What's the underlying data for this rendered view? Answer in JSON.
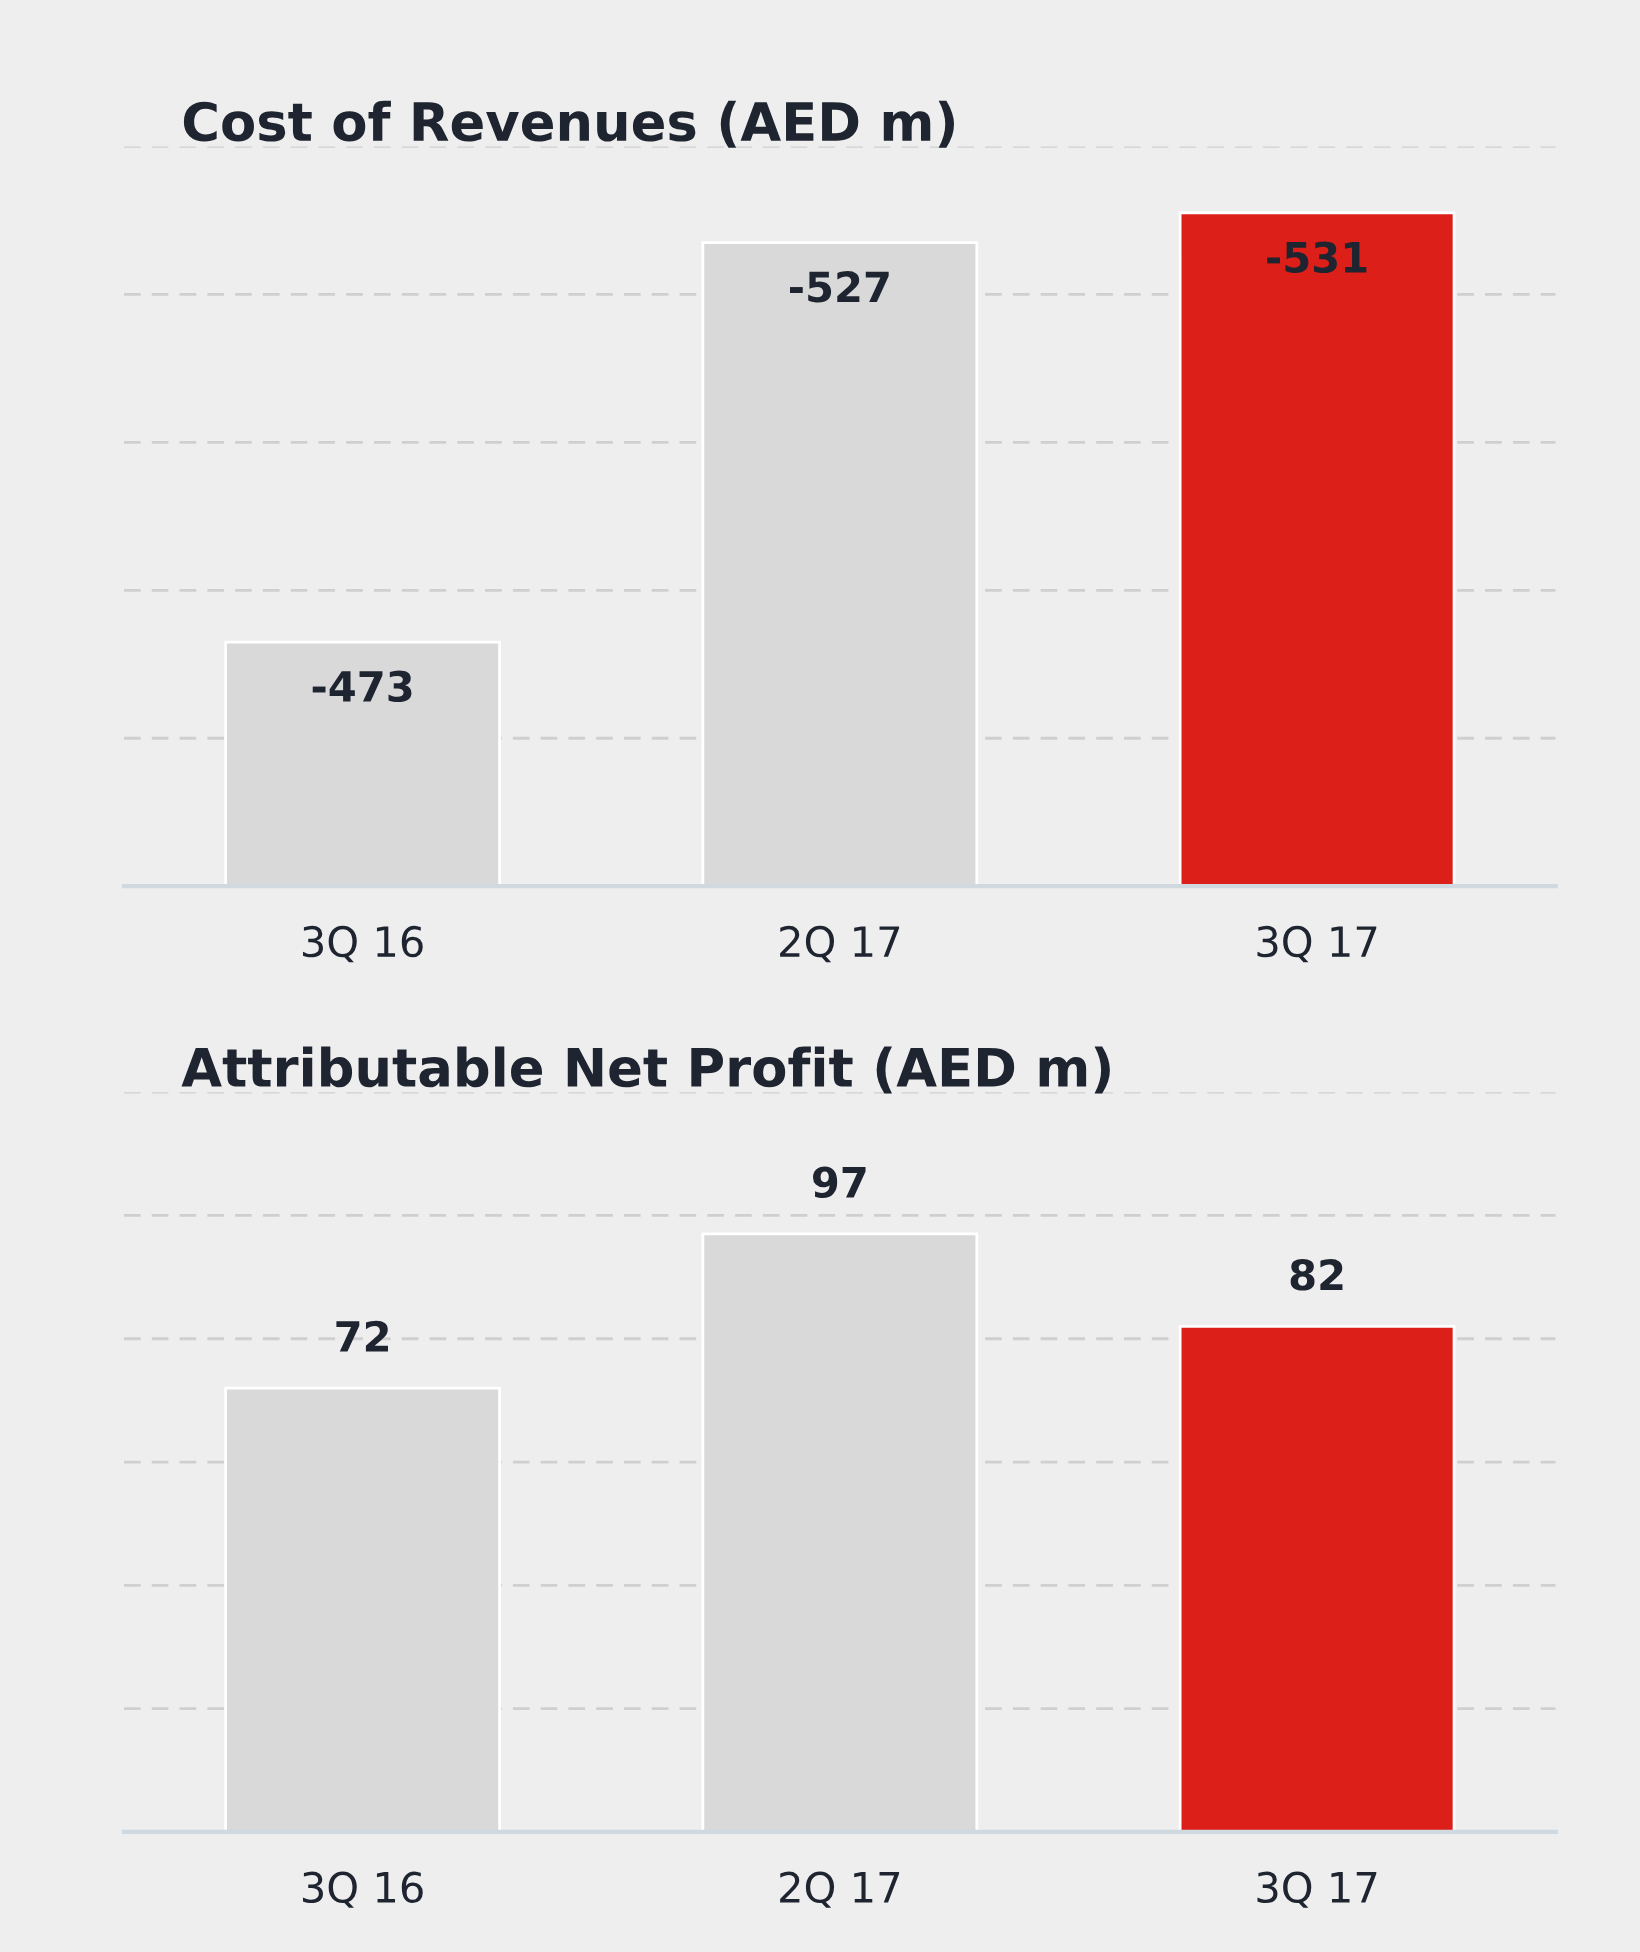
{
  "chart_data": [
    {
      "type": "bar",
      "title": "Cost of Revenues (AED m)",
      "categories": [
        "3Q 16",
        "2Q 17",
        "3Q 17"
      ],
      "values": [
        -473,
        -527,
        -531
      ],
      "colors": [
        "#d9d9d9",
        "#d9d9d9",
        "#dc1f18"
      ],
      "ylim": [
        -440,
        -540
      ],
      "yticks": [
        {
          "value": -460,
          "label": null
        },
        {
          "value": -480,
          "label": null
        },
        {
          "value": -500,
          "label": null
        },
        {
          "value": -520,
          "label": null
        },
        {
          "value": -540,
          "label": null
        }
      ],
      "grid": "y",
      "data_labels": true,
      "tick_labels": "x"
    },
    {
      "type": "bar",
      "title": "Attributable Net Profit (AED m)",
      "categories": [
        "3Q 16",
        "2Q 17",
        "3Q 17"
      ],
      "values": [
        72,
        97,
        82
      ],
      "colors": [
        "#d9d9d9",
        "#d9d9d9",
        "#dc1f18"
      ],
      "ylim": [
        0,
        120
      ],
      "yticks": [
        {
          "value": 20,
          "label": null
        },
        {
          "value": 40,
          "label": null
        },
        {
          "value": 60,
          "label": null
        },
        {
          "value": 80,
          "label": null
        },
        {
          "value": 100,
          "label": null
        },
        {
          "value": 120,
          "label": null
        }
      ],
      "grid": "y",
      "data_labels": true,
      "tick_labels": "x"
    }
  ]
}
